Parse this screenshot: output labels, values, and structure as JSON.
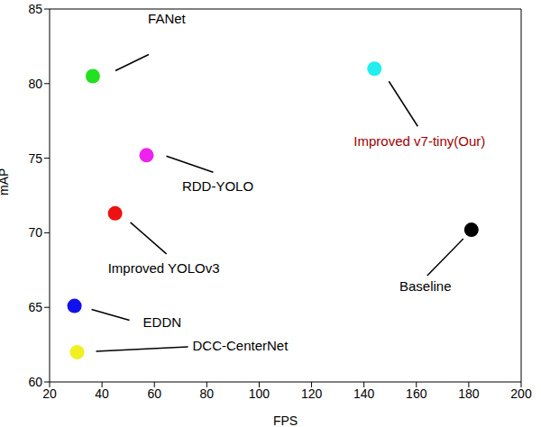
{
  "chart_data": {
    "type": "scatter",
    "x_label": "FPS",
    "y_label": "mAP",
    "xlim": [
      20,
      200
    ],
    "xticks": [
      20,
      40,
      60,
      80,
      100,
      120,
      140,
      160,
      180,
      200
    ],
    "ylim": [
      60,
      85
    ],
    "yticks": [
      60,
      65,
      70,
      75,
      80,
      85
    ],
    "marker": "circle",
    "series": [
      {
        "name": "FANet",
        "color": "#22e022",
        "x": [
          36.5
        ],
        "y": [
          80.5
        ]
      },
      {
        "name": "Improved v7-tiny(Our)",
        "color": "#22eeee",
        "x": [
          144
        ],
        "y": [
          81
        ]
      },
      {
        "name": "RDD-YOLO",
        "color": "#ee22ee",
        "x": [
          57
        ],
        "y": [
          75.2
        ]
      },
      {
        "name": "Improved YOLOv3",
        "color": "#ee1111",
        "x": [
          45
        ],
        "y": [
          71.3
        ]
      },
      {
        "name": "Baseline",
        "color": "#000000",
        "x": [
          181
        ],
        "y": [
          70.2
        ]
      },
      {
        "name": "EDDN",
        "color": "#1111ee",
        "x": [
          29.5
        ],
        "y": [
          65.1
        ]
      },
      {
        "name": "DCC-CenterNet",
        "color": "#f0f020",
        "x": [
          30.5
        ],
        "y": [
          62
        ]
      }
    ]
  }
}
